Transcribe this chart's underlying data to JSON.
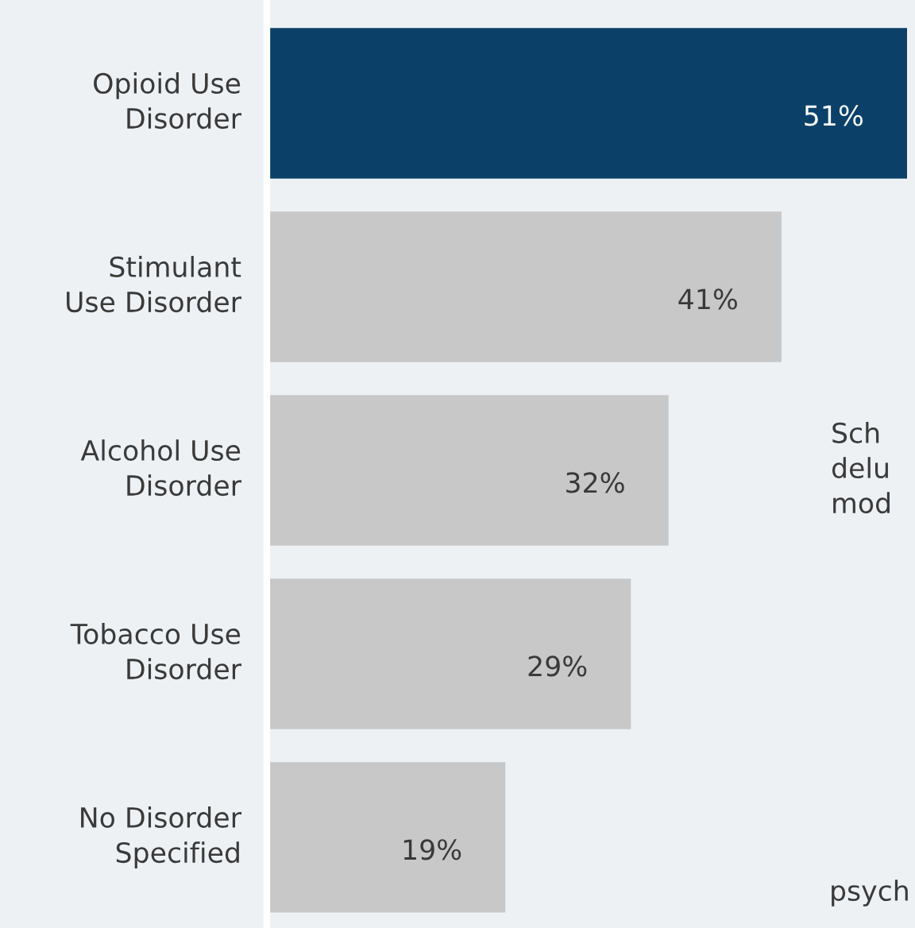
{
  "chart_data": {
    "type": "bar",
    "orientation": "horizontal",
    "categories": [
      "Opioid Use\nDisorder",
      "Stimulant\nUse Disorder",
      "Alcohol Use\nDisorder",
      "Tobacco Use\nDisorder",
      "No Disorder\nSpecified"
    ],
    "values": [
      51,
      41,
      32,
      29,
      19
    ],
    "colors": [
      "#0b4168",
      "#c8c8c8",
      "#c8c8c8",
      "#c8c8c8",
      "#c8c8c8"
    ],
    "value_labels": [
      "51%",
      "41%",
      "32%",
      "29%",
      "19%"
    ],
    "annotations": [
      "Sch\ndelu\nmod",
      "psych"
    ],
    "grid": false,
    "legend": false
  }
}
